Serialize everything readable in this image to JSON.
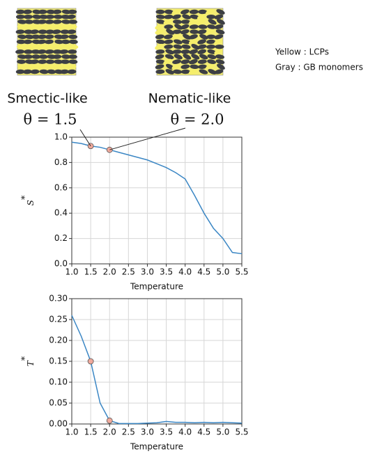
{
  "chart_data": [
    {
      "type": "line",
      "xlabel": "Temperature",
      "ylabel": "S",
      "ylabel_sup": "*",
      "x": [
        1.0,
        1.25,
        1.5,
        1.75,
        2.0,
        2.25,
        2.5,
        2.75,
        3.0,
        3.25,
        3.5,
        3.75,
        4.0,
        4.25,
        4.5,
        4.75,
        5.0,
        5.25,
        5.5
      ],
      "series": [
        {
          "color": "#3a86c4",
          "values": [
            0.96,
            0.95,
            0.93,
            0.92,
            0.9,
            0.88,
            0.86,
            0.84,
            0.82,
            0.79,
            0.76,
            0.72,
            0.67,
            0.54,
            0.4,
            0.28,
            0.2,
            0.09,
            0.08
          ]
        }
      ],
      "highlights": {
        "color": "#f0a99c",
        "x": [
          1.5,
          2.0
        ],
        "values": [
          0.93,
          0.9
        ]
      },
      "xlim": [
        1.0,
        5.5
      ],
      "ylim": [
        0,
        1.0
      ],
      "xticks": [
        {
          "value": 1,
          "label": "1.0"
        },
        1.5,
        {
          "value": 2,
          "label": "2.0"
        },
        2.5,
        {
          "value": 3,
          "label": "3.0"
        },
        3.5,
        {
          "value": 4,
          "label": "4.0"
        },
        4.5,
        {
          "value": 5,
          "label": "5.0"
        },
        5.5
      ],
      "yticks": [
        {
          "value": 0,
          "label": "0.0"
        },
        0.2,
        0.4,
        0.6,
        0.8,
        {
          "value": 1,
          "label": "1.0"
        }
      ],
      "grid": true
    },
    {
      "type": "line",
      "xlabel": "Temperature",
      "ylabel": "T",
      "ylabel_sup": "*",
      "x": [
        1.0,
        1.25,
        1.5,
        1.75,
        2.0,
        2.25,
        2.5,
        2.75,
        3.0,
        3.25,
        3.5,
        3.75,
        4.0,
        4.25,
        4.5,
        4.75,
        5.0,
        5.25,
        5.5
      ],
      "series": [
        {
          "color": "#3a86c4",
          "values": [
            0.26,
            0.21,
            0.15,
            0.05,
            0.008,
            0.001,
            0.001,
            0.001,
            0.002,
            0.003,
            0.006,
            0.004,
            0.004,
            0.003,
            0.004,
            0.003,
            0.004,
            0.003,
            0.002
          ]
        }
      ],
      "highlights": {
        "color": "#f0a99c",
        "x": [
          1.5,
          2.0
        ],
        "values": [
          0.15,
          0.008
        ]
      },
      "xlim": [
        1.0,
        5.5
      ],
      "ylim": [
        0,
        0.3
      ],
      "xticks": [
        {
          "value": 1,
          "label": "1.0"
        },
        1.5,
        {
          "value": 2,
          "label": "2.0"
        },
        2.5,
        {
          "value": 3,
          "label": "3.0"
        },
        3.5,
        {
          "value": 4,
          "label": "4.0"
        },
        4.5,
        {
          "value": 5,
          "label": "5.0"
        },
        5.5
      ],
      "yticks": [
        {
          "value": 0,
          "label": "0.00"
        },
        0.05,
        {
          "value": 0.1,
          "label": "0.10"
        },
        0.15,
        {
          "value": 0.2,
          "label": "0.20"
        },
        0.25,
        {
          "value": 0.3,
          "label": "0.30"
        }
      ],
      "grid": true
    }
  ],
  "annotations": [
    {
      "label": "Smectic-like",
      "theta": "θ = 1.5"
    },
    {
      "label": "Nematic-like",
      "theta": "θ = 2.0"
    }
  ],
  "key": [
    "Yellow : LCPs",
    "Gray : GB monomers"
  ]
}
